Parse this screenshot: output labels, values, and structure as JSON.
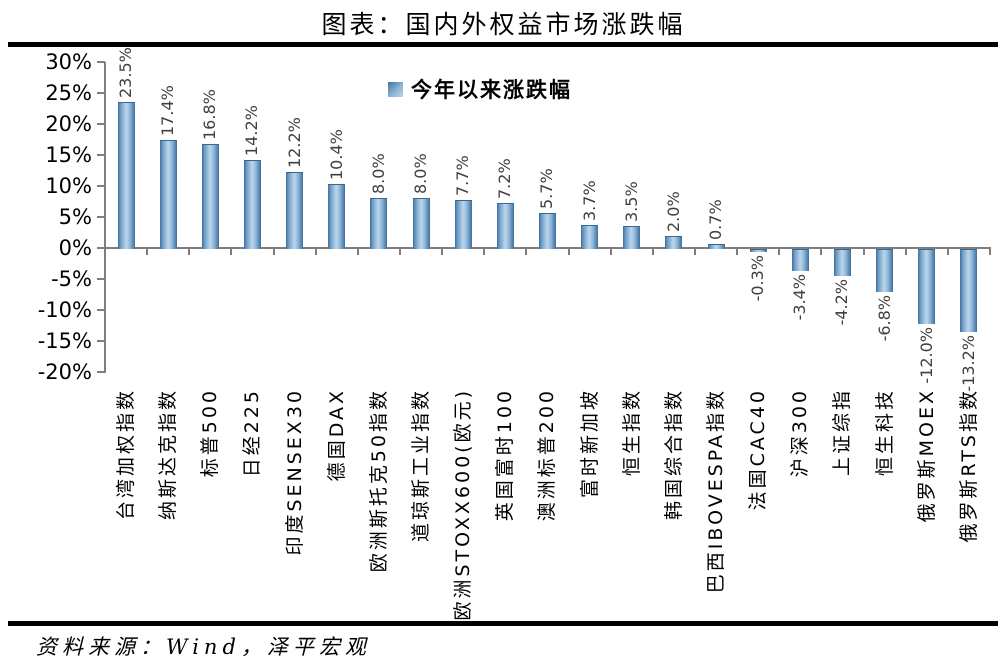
{
  "title": "图表：国内外权益市场涨跌幅",
  "legend_label": "今年以来涨跌幅",
  "source": "资料来源：Wind，泽平宏观",
  "colors": {
    "bar_edge": "#3d6e9b",
    "bar_highlight": "#bcd6ec",
    "axis_gray": "#7f7f7f",
    "value_label_gray": "#404040",
    "rule_black": "#000000"
  },
  "chart_data": {
    "type": "bar",
    "title": "图表：国内外权益市场涨跌幅",
    "legend": [
      "今年以来涨跌幅"
    ],
    "legend_position": "top-center",
    "grid": false,
    "xlabel": "",
    "ylabel": "",
    "ylim": [
      -20,
      30
    ],
    "ytick_values": [
      30,
      25,
      20,
      15,
      10,
      5,
      0,
      -5,
      -10,
      -15,
      -20
    ],
    "ytick_labels": [
      "30%",
      "25%",
      "20%",
      "15%",
      "10%",
      "5%",
      "0%",
      "-5%",
      "-10%",
      "-15%",
      "-20%"
    ],
    "categories": [
      "台湾加权指数",
      "纳斯达克指数",
      "标普500",
      "日经225",
      "印度SENSEX30",
      "德国DAX",
      "欧洲斯托克50指数",
      "道琼斯工业指数",
      "欧洲STOXX600(欧元)",
      "英国富时100",
      "澳洲标普200",
      "富时新加坡",
      "恒生指数",
      "韩国综合指数",
      "巴西IBOVESPA指数",
      "法国CAC40",
      "沪深300",
      "上证综指",
      "恒生科技",
      "俄罗斯MOEX",
      "俄罗斯RTS指数"
    ],
    "values": [
      23.5,
      17.4,
      16.8,
      14.2,
      12.2,
      10.4,
      8.0,
      8.0,
      7.7,
      7.2,
      5.7,
      3.7,
      3.5,
      2.0,
      0.7,
      -0.3,
      -3.4,
      -4.2,
      -6.8,
      -12.0,
      -13.2
    ],
    "value_labels": [
      "23.5%",
      "17.4%",
      "16.8%",
      "14.2%",
      "12.2%",
      "10.4%",
      "8.0%",
      "8.0%",
      "7.7%",
      "7.2%",
      "5.7%",
      "3.7%",
      "3.5%",
      "2.0%",
      "0.7%",
      "-0.3%",
      "-3.4%",
      "-4.2%",
      "-6.8%",
      "-12.0%",
      "-13.2%"
    ]
  }
}
